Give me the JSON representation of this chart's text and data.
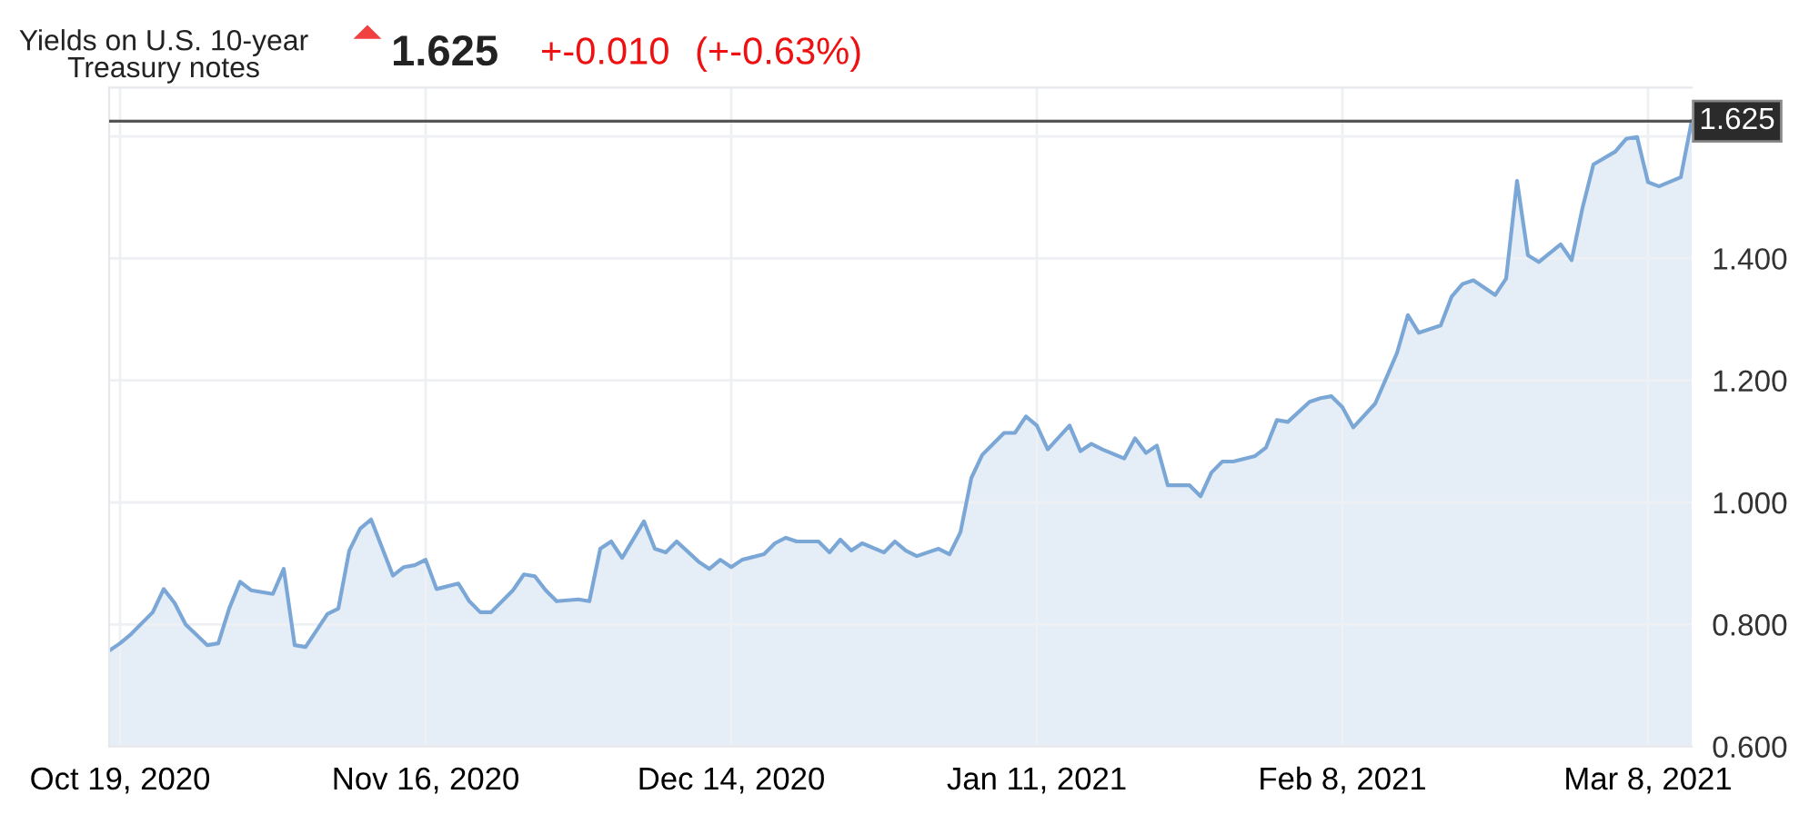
{
  "chart_data": {
    "type": "area",
    "title": "Yields on U.S. 10-year\nTreasury notes",
    "annotations": [
      "1.625",
      "+-0.010",
      "(+-0.63%)"
    ],
    "x": [
      "2020-10-18",
      "2020-10-19",
      "2020-10-20",
      "2020-10-22",
      "2020-10-23",
      "2020-10-24",
      "2020-10-25",
      "2020-10-27",
      "2020-10-28",
      "2020-10-29",
      "2020-10-30",
      "2020-10-31",
      "2020-11-02",
      "2020-11-03",
      "2020-11-04",
      "2020-11-05",
      "2020-11-07",
      "2020-11-08",
      "2020-11-09",
      "2020-11-10",
      "2020-11-11",
      "2020-11-13",
      "2020-11-14",
      "2020-11-15",
      "2020-11-16",
      "2020-11-17",
      "2020-11-19",
      "2020-11-20",
      "2020-11-21",
      "2020-11-22",
      "2020-11-24",
      "2020-11-25",
      "2020-11-26",
      "2020-11-27",
      "2020-11-28",
      "2020-11-30",
      "2020-12-01",
      "2020-12-02",
      "2020-12-03",
      "2020-12-04",
      "2020-12-06",
      "2020-12-07",
      "2020-12-08",
      "2020-12-09",
      "2020-12-11",
      "2020-12-12",
      "2020-12-13",
      "2020-12-14",
      "2020-12-15",
      "2020-12-17",
      "2020-12-18",
      "2020-12-19",
      "2020-12-20",
      "2020-12-22",
      "2020-12-23",
      "2020-12-24",
      "2020-12-25",
      "2020-12-26",
      "2020-12-28",
      "2020-12-29",
      "2020-12-30",
      "2020-12-31",
      "2021-01-02",
      "2021-01-03",
      "2021-01-04",
      "2021-01-05",
      "2021-01-06",
      "2021-01-08",
      "2021-01-09",
      "2021-01-10",
      "2021-01-11",
      "2021-01-12",
      "2021-01-14",
      "2021-01-15",
      "2021-01-16",
      "2021-01-17",
      "2021-01-19",
      "2021-01-20",
      "2021-01-21",
      "2021-01-22",
      "2021-01-23",
      "2021-01-25",
      "2021-01-26",
      "2021-01-27",
      "2021-01-28",
      "2021-01-29",
      "2021-01-31",
      "2021-02-01",
      "2021-02-02",
      "2021-02-03",
      "2021-02-05",
      "2021-02-06",
      "2021-02-07",
      "2021-02-08",
      "2021-02-09",
      "2021-02-11",
      "2021-02-12",
      "2021-02-13",
      "2021-02-14",
      "2021-02-15",
      "2021-02-17",
      "2021-02-18",
      "2021-02-19",
      "2021-02-20",
      "2021-02-22",
      "2021-02-23",
      "2021-02-24",
      "2021-02-25",
      "2021-02-26",
      "2021-02-28",
      "2021-03-01",
      "2021-03-02",
      "2021-03-03",
      "2021-03-05",
      "2021-03-06",
      "2021-03-07",
      "2021-03-08",
      "2021-03-09",
      "2021-03-11",
      "2021-03-12"
    ],
    "series": [
      {
        "color": "#7ba7d7",
        "values": [
          0.757,
          0.769,
          0.784,
          0.82,
          0.858,
          0.835,
          0.8,
          0.766,
          0.769,
          0.826,
          0.87,
          0.856,
          0.85,
          0.891,
          0.766,
          0.763,
          0.817,
          0.826,
          0.921,
          0.957,
          0.972,
          0.88,
          0.894,
          0.897,
          0.906,
          0.858,
          0.867,
          0.838,
          0.82,
          0.82,
          0.856,
          0.882,
          0.879,
          0.856,
          0.838,
          0.841,
          0.838,
          0.924,
          0.936,
          0.909,
          0.969,
          0.924,
          0.918,
          0.936,
          0.903,
          0.891,
          0.906,
          0.894,
          0.906,
          0.915,
          0.933,
          0.942,
          0.936,
          0.936,
          0.918,
          0.939,
          0.921,
          0.933,
          0.918,
          0.936,
          0.921,
          0.912,
          0.924,
          0.915,
          0.951,
          1.04,
          1.078,
          1.114,
          1.114,
          1.141,
          1.126,
          1.087,
          1.126,
          1.084,
          1.096,
          1.087,
          1.072,
          1.105,
          1.081,
          1.093,
          1.028,
          1.028,
          1.01,
          1.049,
          1.067,
          1.067,
          1.076,
          1.09,
          1.135,
          1.132,
          1.165,
          1.171,
          1.174,
          1.156,
          1.123,
          1.162,
          1.203,
          1.245,
          1.307,
          1.278,
          1.29,
          1.337,
          1.358,
          1.364,
          1.34,
          1.367,
          1.527,
          1.405,
          1.394,
          1.423,
          1.397,
          1.483,
          1.554,
          1.575,
          1.596,
          1.599,
          1.525,
          1.518,
          1.533,
          1.625
        ]
      }
    ],
    "xlim": [
      "2020-10-18",
      "2021-03-12"
    ],
    "xticks": [
      {
        "value": "2020-10-19",
        "label": "Oct 19, 2020"
      },
      {
        "value": "2020-11-16",
        "label": "Nov 16, 2020"
      },
      {
        "value": "2020-12-14",
        "label": "Dec 14, 2020"
      },
      {
        "value": "2021-01-11",
        "label": "Jan 11, 2021"
      },
      {
        "value": "2021-02-08",
        "label": "Feb 8, 2021"
      },
      {
        "value": "2021-03-08",
        "label": "Mar 8, 2021"
      }
    ],
    "ylim": [
      0.6,
      1.68
    ],
    "yticks": [
      {
        "value": 0.6,
        "label": "0.600"
      },
      {
        "value": 0.8,
        "label": "0.800"
      },
      {
        "value": 1.0,
        "label": "1.000"
      },
      {
        "value": 1.2,
        "label": "1.200"
      },
      {
        "value": 1.4,
        "label": "1.400"
      },
      {
        "value": 1.6,
        "label": null
      }
    ],
    "ref_lines": [
      {
        "axis": "y",
        "value": 1.625,
        "label": "1.625",
        "color": "#555555"
      }
    ],
    "grid": true,
    "legend": false
  }
}
